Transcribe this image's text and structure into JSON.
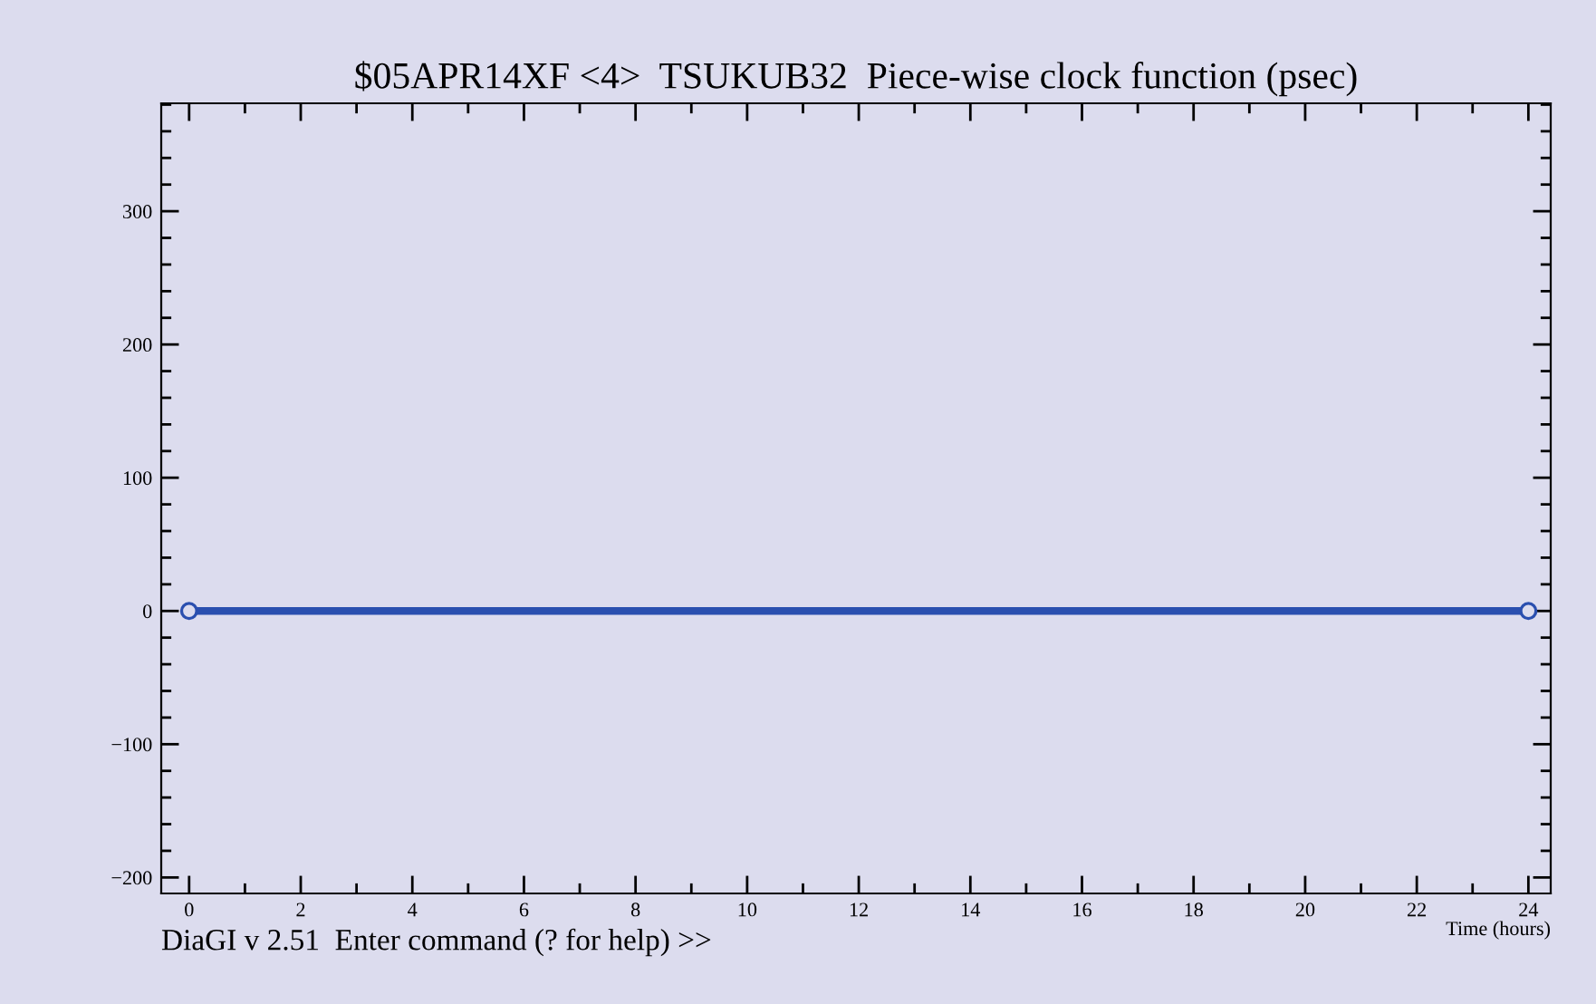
{
  "chart_data": {
    "type": "line",
    "title": "$05APR14XF <4>  TSUKUB32  Piece-wise clock function (psec)",
    "xlabel": "Time (hours)",
    "annotations": [
      "DiaGI v 2.51  Enter command (? for help) >>"
    ],
    "x": [
      0,
      24
    ],
    "series": [
      {
        "color": "#2a4faf",
        "values": [
          0,
          0
        ]
      }
    ],
    "marker": "circle",
    "xlim": [
      -0.5,
      24.4
    ],
    "ylim": [
      -212,
      381
    ],
    "xticks": [
      0,
      2,
      4,
      6,
      8,
      10,
      12,
      14,
      16,
      18,
      20,
      22,
      24
    ],
    "yticks": [
      -200,
      -100,
      0,
      100,
      200,
      300
    ],
    "grid": false,
    "legend": false
  }
}
